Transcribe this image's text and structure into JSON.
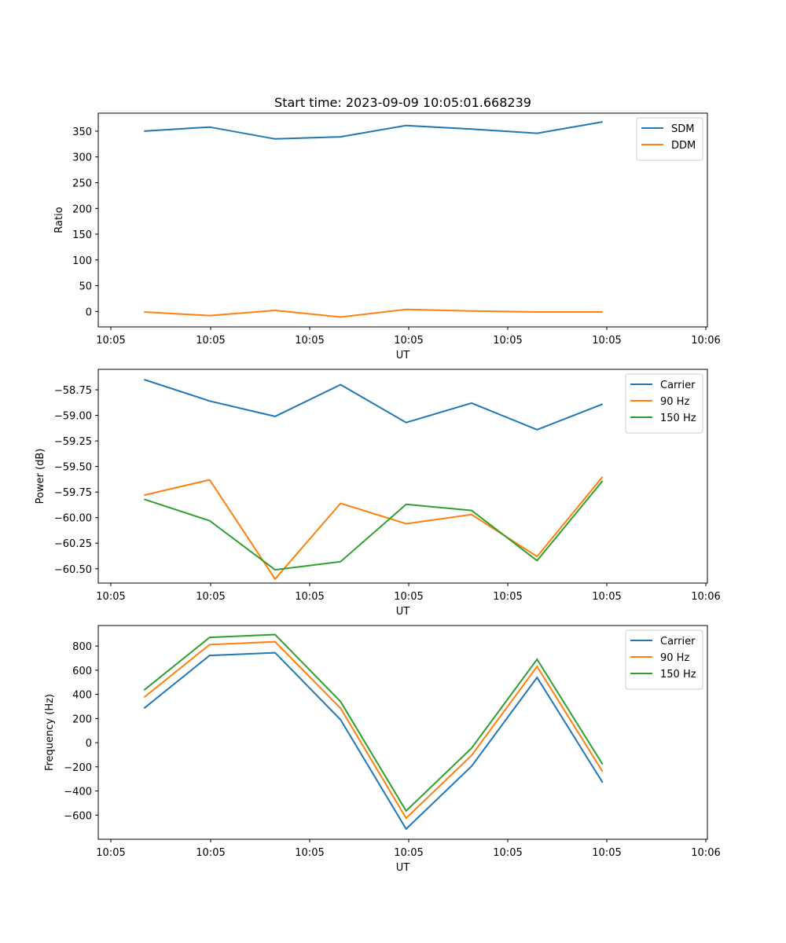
{
  "figure_title": "Start time: 2023-09-09 10:05:01.668239",
  "chart_data": [
    {
      "type": "line",
      "title": "Start time: 2023-09-09 10:05:01.668239",
      "xlabel": "UT",
      "ylabel": "Ratio",
      "x_tick_labels": [
        "10:05",
        "10:05",
        "10:05",
        "10:05",
        "10:05",
        "10:05",
        "10:06"
      ],
      "xlim": [
        -0.2,
        9.1
      ],
      "x": [
        0.5,
        1.5,
        2.5,
        3.5,
        4.5,
        5.5,
        6.5,
        7.5
      ],
      "ylim": [
        -30,
        385
      ],
      "y_ticks": [
        0,
        50,
        100,
        150,
        200,
        250,
        300,
        350
      ],
      "y_tick_labels": [
        "0",
        "50",
        "100",
        "150",
        "200",
        "250",
        "300",
        "350"
      ],
      "legend_position": "top-right",
      "series": [
        {
          "name": "SDM",
          "color": "#1f77b4",
          "values": [
            350,
            358,
            335,
            339,
            361,
            354,
            346,
            368
          ]
        },
        {
          "name": "DDM",
          "color": "#ff7f0e",
          "values": [
            -1,
            -8,
            2,
            -11,
            4,
            1,
            -1,
            -1
          ]
        }
      ]
    },
    {
      "type": "line",
      "title": "",
      "xlabel": "UT",
      "ylabel": "Power (dB)",
      "x_tick_labels": [
        "10:05",
        "10:05",
        "10:05",
        "10:05",
        "10:05",
        "10:05",
        "10:06"
      ],
      "xlim": [
        -0.2,
        9.1
      ],
      "x": [
        0.5,
        1.5,
        2.5,
        3.5,
        4.5,
        5.5,
        6.5,
        7.5
      ],
      "ylim": [
        -60.64,
        -58.55
      ],
      "y_ticks": [
        -58.75,
        -59.0,
        -59.25,
        -59.5,
        -59.75,
        -60.0,
        -60.25,
        -60.5
      ],
      "y_tick_labels": [
        "−58.75",
        "−59.00",
        "−59.25",
        "−59.50",
        "−59.75",
        "−60.00",
        "−60.25",
        "−60.50"
      ],
      "legend_position": "top-right",
      "series": [
        {
          "name": "Carrier",
          "color": "#1f77b4",
          "values": [
            -58.65,
            -58.86,
            -59.01,
            -58.7,
            -59.07,
            -58.88,
            -59.14,
            -58.89
          ]
        },
        {
          "name": "90 Hz",
          "color": "#ff7f0e",
          "values": [
            -59.78,
            -59.63,
            -60.6,
            -59.86,
            -60.06,
            -59.97,
            -60.38,
            -59.6
          ]
        },
        {
          "name": "150 Hz",
          "color": "#2ca02c",
          "values": [
            -59.82,
            -60.03,
            -60.51,
            -60.43,
            -59.87,
            -59.93,
            -60.42,
            -59.64
          ]
        }
      ]
    },
    {
      "type": "line",
      "title": "",
      "xlabel": "UT",
      "ylabel": "Frequency (Hz)",
      "x_tick_labels": [
        "10:05",
        "10:05",
        "10:05",
        "10:05",
        "10:05",
        "10:05",
        "10:06"
      ],
      "xlim": [
        -0.2,
        9.1
      ],
      "x": [
        0.5,
        1.5,
        2.5,
        3.5,
        4.5,
        5.5,
        6.5,
        7.5
      ],
      "ylim": [
        -800,
        970
      ],
      "y_ticks": [
        -600,
        -400,
        -200,
        0,
        200,
        400,
        600,
        800
      ],
      "y_tick_labels": [
        "−600",
        "−400",
        "−200",
        "0",
        "200",
        "400",
        "600",
        "800"
      ],
      "legend_position": "top-right",
      "series": [
        {
          "name": "Carrier",
          "color": "#1f77b4",
          "values": [
            285,
            722,
            745,
            190,
            -715,
            -195,
            540,
            -330
          ]
        },
        {
          "name": "90 Hz",
          "color": "#ff7f0e",
          "values": [
            375,
            812,
            835,
            285,
            -625,
            -105,
            630,
            -240
          ]
        },
        {
          "name": "150 Hz",
          "color": "#2ca02c",
          "values": [
            435,
            872,
            895,
            340,
            -565,
            -45,
            690,
            -180
          ]
        }
      ]
    }
  ]
}
